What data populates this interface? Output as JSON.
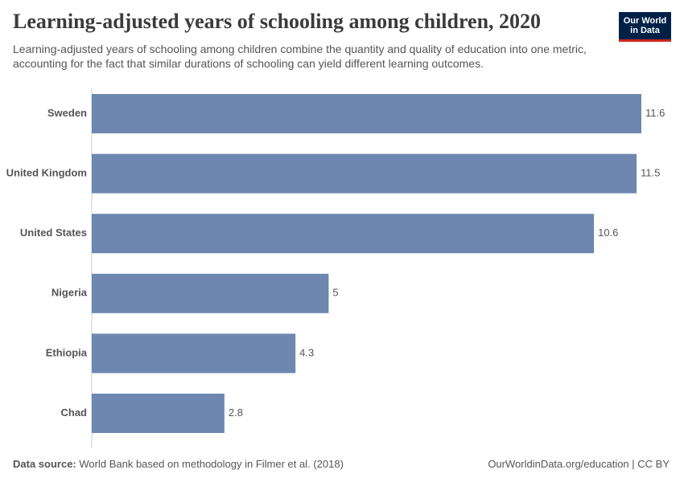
{
  "chart_data": {
    "type": "bar",
    "orientation": "horizontal",
    "title": "Learning-adjusted years of schooling among children, 2020",
    "subtitle": "Learning-adjusted years of schooling among children combine the quantity and quality of education into one metric, accounting for the fact that similar durations of schooling can yield different learning outcomes.",
    "categories": [
      "Sweden",
      "United Kingdom",
      "United States",
      "Nigeria",
      "Ethiopia",
      "Chad"
    ],
    "values": [
      11.6,
      11.5,
      10.6,
      5,
      4.3,
      2.8
    ],
    "color": "#6d87b0",
    "xlim": [
      0,
      11.6
    ],
    "source_label": "Data source:",
    "source": "World Bank based on methodology in Filmer et al. (2018)",
    "footer_right": "OurWorldinData.org/education | CC BY",
    "logo": [
      "Our World",
      "in Data"
    ]
  }
}
